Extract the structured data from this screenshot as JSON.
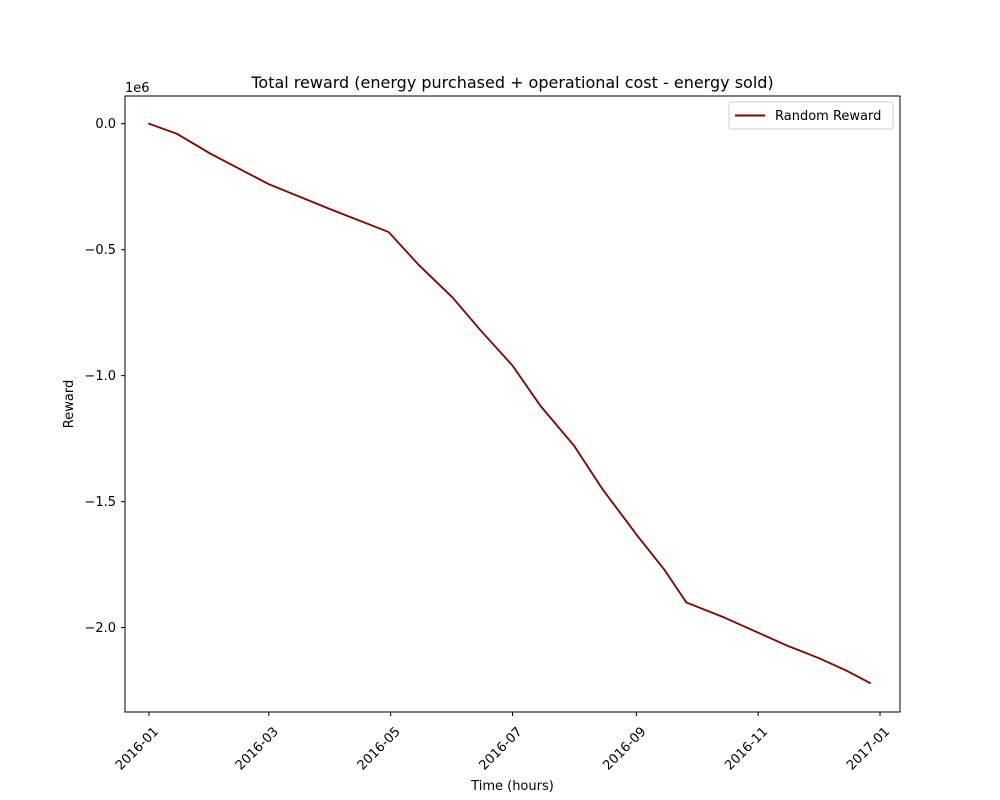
{
  "chart_data": {
    "type": "line",
    "title": "Total reward (energy purchased + operational cost - energy sold)",
    "xlabel": "Time (hours)",
    "ylabel": "Reward",
    "y_offset_label": "1e6",
    "y_scale_factor": 1000000,
    "xlim": [
      "2015-12-20",
      "2017-01-11"
    ],
    "ylim": [
      -2.335,
      0.11
    ],
    "x_ticks": [
      {
        "value": "2016-01-01",
        "label": "2016-01"
      },
      {
        "value": "2016-03-01",
        "label": "2016-03"
      },
      {
        "value": "2016-05-01",
        "label": "2016-05"
      },
      {
        "value": "2016-07-01",
        "label": "2016-07"
      },
      {
        "value": "2016-09-01",
        "label": "2016-09"
      },
      {
        "value": "2016-11-01",
        "label": "2016-11"
      },
      {
        "value": "2017-01-01",
        "label": "2017-01"
      }
    ],
    "y_ticks": [
      {
        "value": 0.0,
        "label": "0.0"
      },
      {
        "value": -0.5,
        "label": "−0.5"
      },
      {
        "value": -1.0,
        "label": "−1.0"
      },
      {
        "value": -1.5,
        "label": "−1.5"
      },
      {
        "value": -2.0,
        "label": "−2.0"
      }
    ],
    "grid": false,
    "legend_position": "top-right",
    "series": [
      {
        "name": "Random Reward",
        "color": "#800000",
        "x": [
          "2016-01-01",
          "2016-01-15",
          "2016-02-01",
          "2016-03-01",
          "2016-04-01",
          "2016-04-30",
          "2016-05-15",
          "2016-06-01",
          "2016-06-15",
          "2016-07-01",
          "2016-07-15",
          "2016-08-01",
          "2016-08-15",
          "2016-09-01",
          "2016-09-15",
          "2016-09-26",
          "2016-10-15",
          "2016-11-01",
          "2016-11-15",
          "2016-12-01",
          "2016-12-15",
          "2016-12-27"
        ],
        "values": [
          0.0,
          -0.04,
          -0.12,
          -0.24,
          -0.34,
          -0.43,
          -0.56,
          -0.69,
          -0.82,
          -0.96,
          -1.12,
          -1.28,
          -1.45,
          -1.63,
          -1.77,
          -1.9,
          -1.96,
          -2.02,
          -2.07,
          -2.12,
          -2.17,
          -2.22
        ]
      }
    ]
  }
}
